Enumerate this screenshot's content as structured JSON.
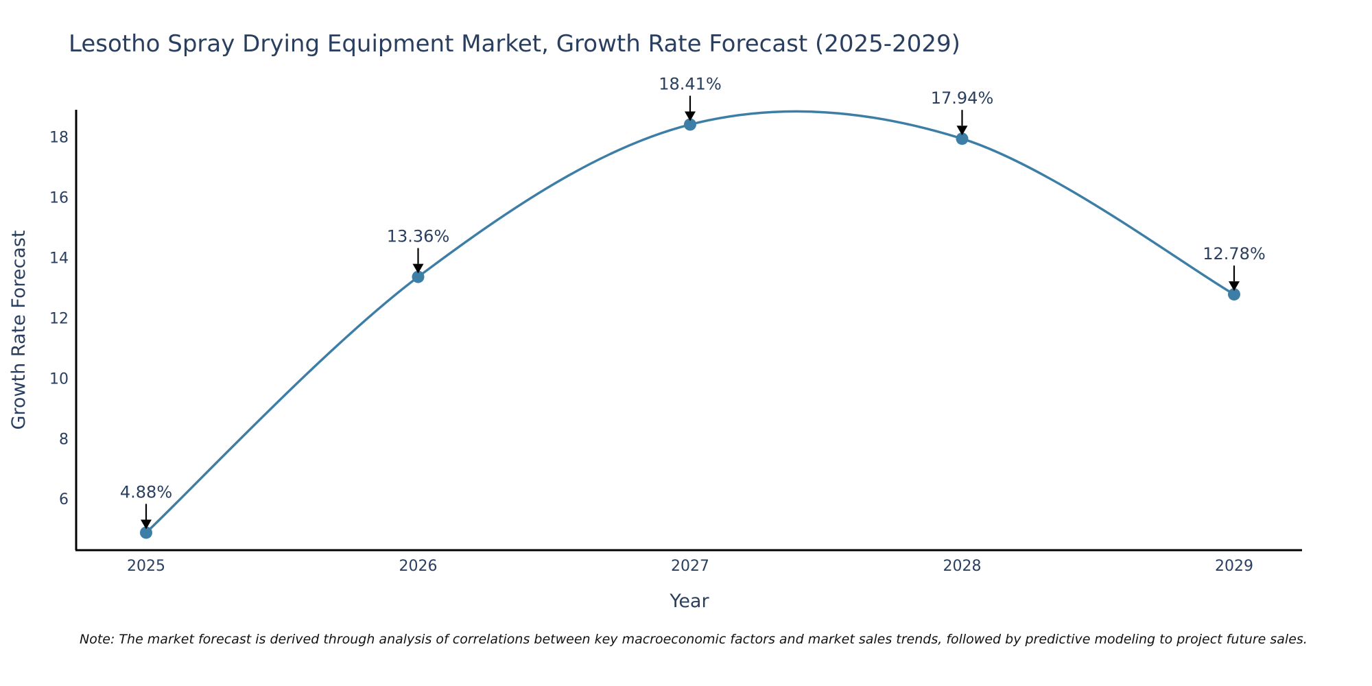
{
  "chart_data": {
    "type": "line",
    "title": "Lesotho Spray Drying Equipment Market, Growth Rate Forecast (2025-2029)",
    "xlabel": "Year",
    "ylabel": "Growth Rate Forecast",
    "categories": [
      "2025",
      "2026",
      "2027",
      "2028",
      "2029"
    ],
    "values": [
      4.88,
      13.36,
      18.41,
      17.94,
      12.78
    ],
    "data_labels": [
      "4.88%",
      "13.36%",
      "18.41%",
      "17.94%",
      "12.78%"
    ],
    "ylim": [
      4.3,
      18.9
    ],
    "yticks": [
      6,
      8,
      10,
      12,
      14,
      16,
      18
    ],
    "grid": false,
    "line_color": "#3d7ea6",
    "marker_color": "#3d7ea6",
    "arrow_color": "#000000",
    "note": "Note: The market forecast is derived through analysis of correlations between key macroeconomic factors and market sales trends, followed by predictive modeling to project future sales."
  }
}
